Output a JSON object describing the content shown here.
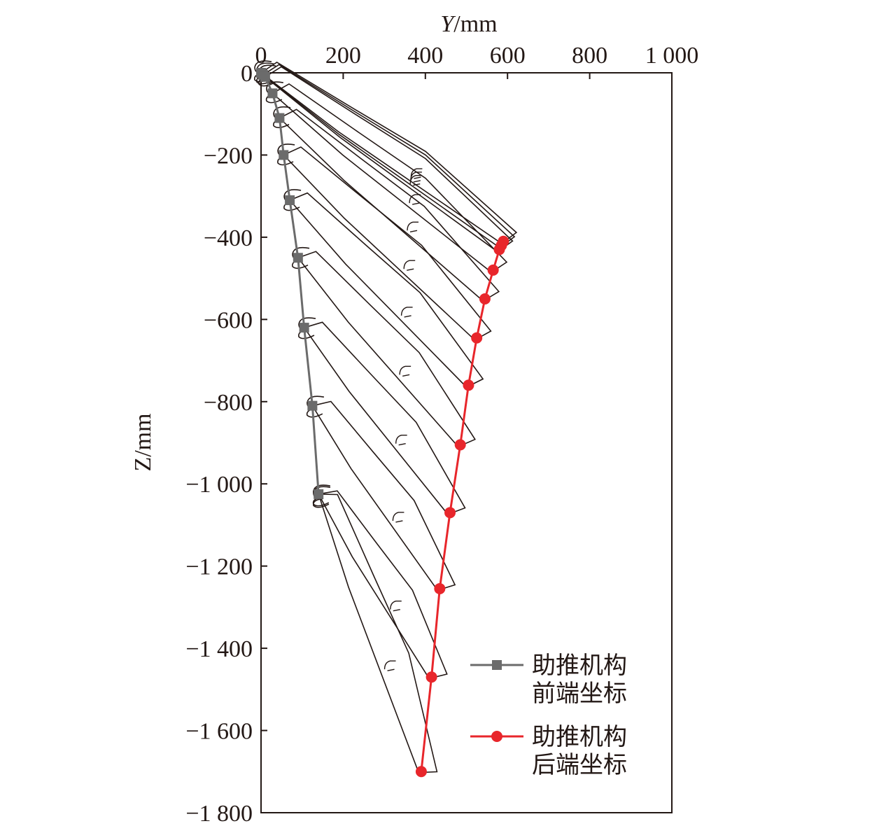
{
  "chart_data": {
    "type": "line",
    "title": "",
    "xlabel": "Y/mm",
    "xlabel_parts": {
      "var": "Y",
      "unit": "/mm"
    },
    "ylabel": "Z/mm",
    "xlim": [
      0,
      1000
    ],
    "ylim": [
      -1800,
      0
    ],
    "x_axis_position": "top",
    "x_ticks": [
      0,
      200,
      400,
      600,
      800,
      1000
    ],
    "x_tick_labels": [
      "0",
      "200",
      "400",
      "600",
      "800",
      "1 000"
    ],
    "y_ticks": [
      0,
      -200,
      -400,
      -600,
      -800,
      -1000,
      -1200,
      -1400,
      -1600,
      -1800
    ],
    "y_tick_labels": [
      "0",
      "−200",
      "−400",
      "−600",
      "−800",
      "−1 000",
      "−1 200",
      "−1 400",
      "−1 600",
      "−1 800"
    ],
    "grid": false,
    "legend_position": "bottom-right",
    "series": [
      {
        "name": "助推机构\n前端坐标",
        "legend_lines": [
          "助推机构",
          "前端坐标"
        ],
        "marker": "square",
        "color": "#6b6b6b",
        "x": [
          0,
          5,
          10,
          28,
          45,
          55,
          70,
          90,
          105,
          125,
          140
        ],
        "y": [
          0,
          -5,
          -10,
          -50,
          -110,
          -200,
          -310,
          -450,
          -620,
          -810,
          -1025
        ]
      },
      {
        "name": "助推机构\n后端坐标",
        "legend_lines": [
          "助推机构",
          "后端坐标"
        ],
        "marker": "circle",
        "color": "#e8262b",
        "x": [
          590,
          585,
          580,
          565,
          545,
          525,
          505,
          485,
          460,
          435,
          415,
          390
        ],
        "y": [
          -410,
          -420,
          -430,
          -480,
          -550,
          -645,
          -760,
          -905,
          -1070,
          -1255,
          -1470,
          -1700
        ]
      }
    ],
    "mechanism_color": "#231815"
  }
}
